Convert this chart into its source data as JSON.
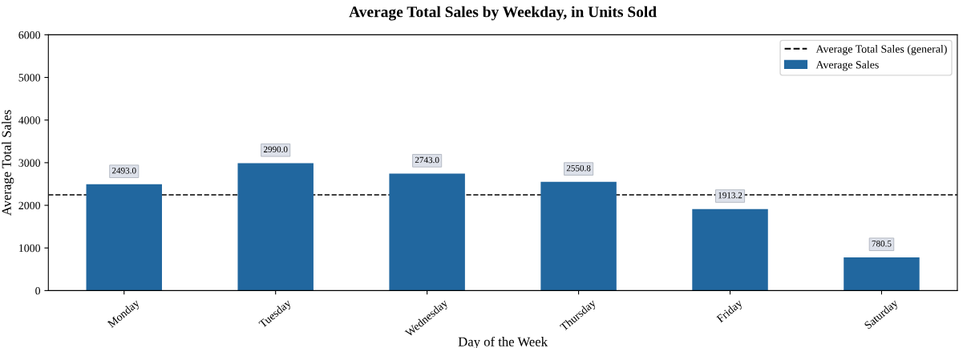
{
  "chart_data": {
    "type": "bar",
    "title": "Average Total Sales by Weekday, in Units Sold",
    "xlabel": "Day of the Week",
    "ylabel": "Average Total Sales",
    "categories": [
      "Monday",
      "Tuesday",
      "Wednesday",
      "Thursday",
      "Friday",
      "Saturday"
    ],
    "series": [
      {
        "name": "Average Sales",
        "color": "#21679f",
        "values": [
          2493.0,
          2990.0,
          2743.0,
          2550.8,
          1913.2,
          780.5
        ]
      }
    ],
    "value_labels": [
      "2493.0",
      "2990.0",
      "2743.0",
      "2550.8",
      "1913.2",
      "780.5"
    ],
    "ylim": [
      0,
      6000
    ],
    "yticks": [
      0,
      1000,
      2000,
      3000,
      4000,
      5000,
      6000
    ],
    "ref_lines": [
      {
        "axis": "y",
        "value": 2245,
        "label": "Average Total Sales (general)",
        "color": "#000000",
        "line_style": "dashed"
      }
    ],
    "legend": "top right",
    "grid": false
  }
}
